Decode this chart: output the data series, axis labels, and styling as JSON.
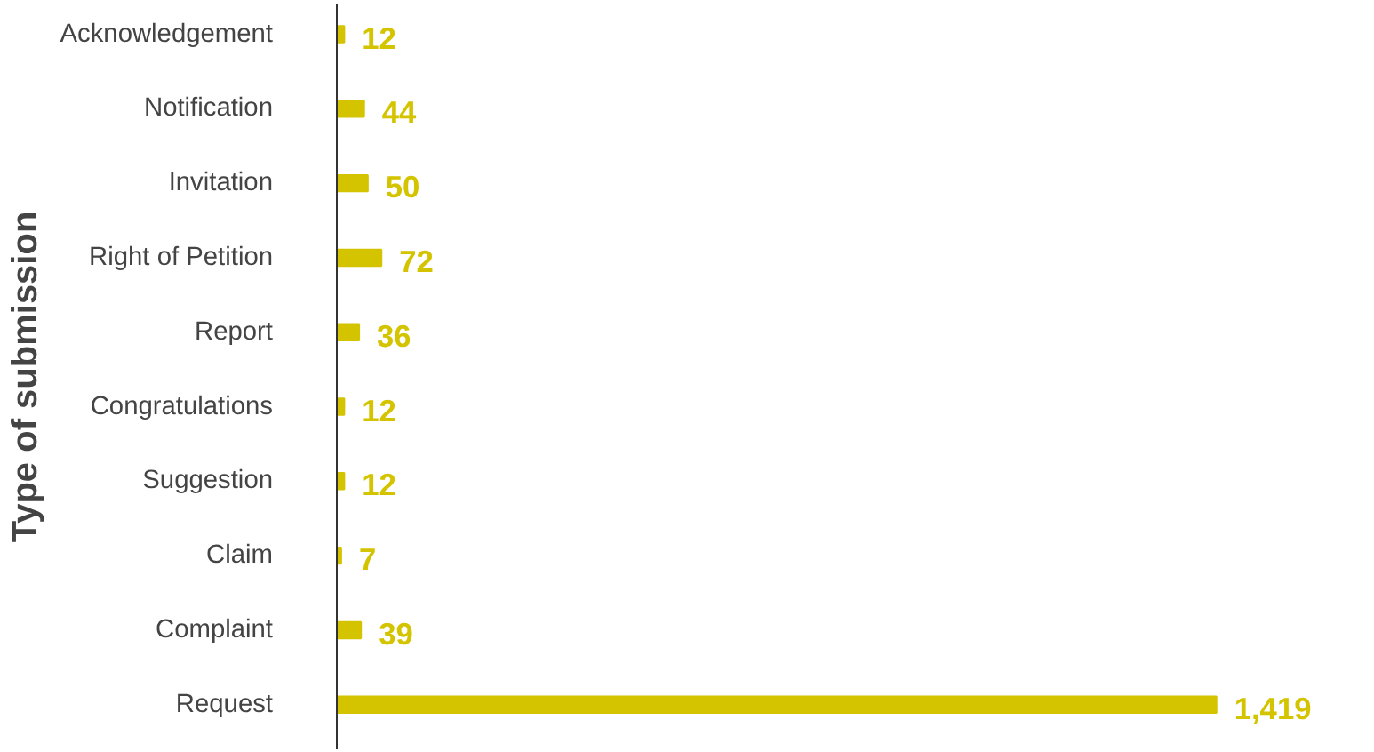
{
  "chart_data": {
    "type": "bar",
    "orientation": "horizontal",
    "ylabel": "Type of submission",
    "categories": [
      "Acknowledgement",
      "Notification",
      "Invitation",
      "Right of Petition",
      "Report",
      "Congratulations",
      "Suggestion",
      "Claim",
      "Complaint",
      "Request"
    ],
    "values": [
      12,
      44,
      50,
      72,
      36,
      12,
      12,
      7,
      39,
      1419
    ],
    "value_labels": [
      "12",
      "44",
      "50",
      "72",
      "36",
      "12",
      "12",
      "7",
      "39",
      "1,419"
    ],
    "color": "#d4c400",
    "grid": false
  }
}
